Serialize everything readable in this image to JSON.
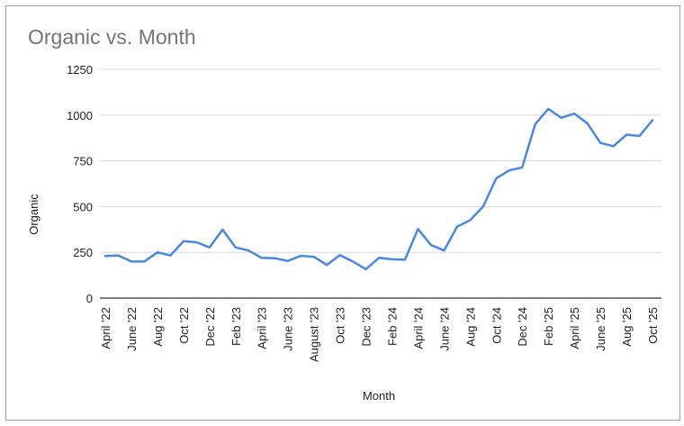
{
  "chart_data": {
    "type": "line",
    "title": "Organic vs. Month",
    "xlabel": "Month",
    "ylabel": "Organic",
    "ylim": [
      0,
      1250
    ],
    "yticks": [
      0,
      250,
      500,
      750,
      1000,
      1250
    ],
    "grid": true,
    "legend": "none",
    "line_color": "#4a86e8",
    "categories": [
      "April '22",
      "May '22",
      "June '22",
      "July '22",
      "Aug '22",
      "Sep '22",
      "Oct '22",
      "Nov '22",
      "Dec '22",
      "Jan '23",
      "Feb '23",
      "Mar '23",
      "April '23",
      "May '23",
      "June '23",
      "July '23",
      "August '23",
      "Sep '23",
      "Oct '23",
      "Nov '23",
      "Dec '23",
      "Jan '24",
      "Feb '24",
      "Mar '24",
      "April '24",
      "May '24",
      "June '24",
      "July '24",
      "Aug '24",
      "Sep '24",
      "Oct '24",
      "Nov '24",
      "Dec '24",
      "Jan '25",
      "Feb '25",
      "Mar '25",
      "April '25",
      "May '25",
      "June '25",
      "July '25",
      "Aug '25",
      "Sep '25",
      "Oct '25"
    ],
    "tick_labels": [
      "April '22",
      "June '22",
      "Aug '22",
      "Oct '22",
      "Dec '22",
      "Feb '23",
      "April '23",
      "June '23",
      "August '23",
      "Oct '23",
      "Dec '23",
      "Feb '24",
      "April '24",
      "June '24",
      "Aug '24",
      "Oct '24",
      "Dec '24",
      "Feb '25",
      "April '25",
      "June '25",
      "Aug '25",
      "Oct '25"
    ],
    "series": [
      {
        "values": [
          230,
          233,
          200,
          200,
          250,
          233,
          311,
          305,
          277,
          374,
          277,
          260,
          220,
          218,
          203,
          231,
          226,
          181,
          235,
          200,
          158,
          220,
          212,
          210,
          378,
          290,
          260,
          390,
          426,
          500,
          654,
          698,
          714,
          951,
          1034,
          985,
          1008,
          955,
          848,
          830,
          893,
          886,
          972
        ]
      }
    ]
  }
}
